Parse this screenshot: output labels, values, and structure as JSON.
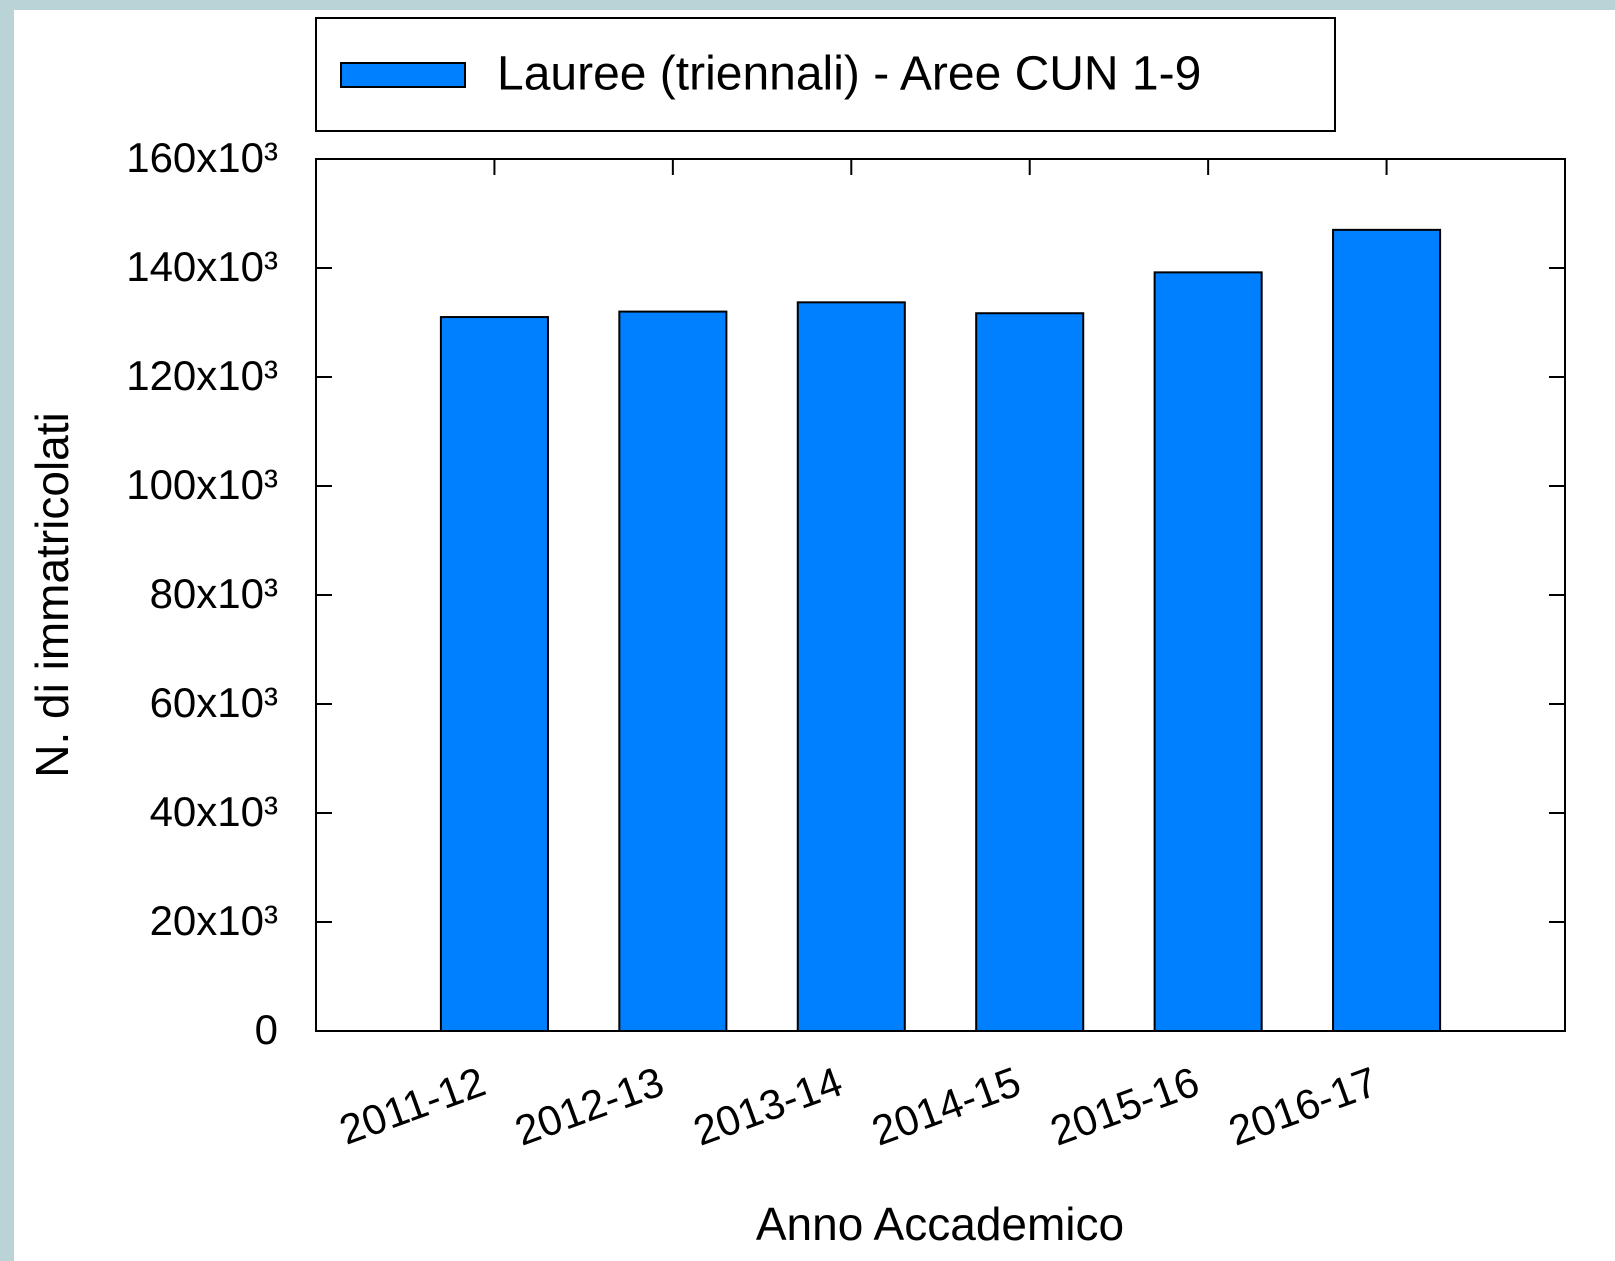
{
  "chart_data": {
    "type": "bar",
    "xlabel": "Anno Accademico",
    "ylabel": "N. di immatricolati",
    "categories": [
      "2011-12",
      "2012-13",
      "2013-14",
      "2014-15",
      "2015-16",
      "2016-17"
    ],
    "series": [
      {
        "name": "Lauree (triennali) - Aree CUN 1-9",
        "color": "#0080ff",
        "values": [
          131000,
          132000,
          133700,
          131700,
          139200,
          147000
        ]
      }
    ],
    "ylim": [
      0,
      160000
    ],
    "yticks": [
      0,
      {
        "value": 20000,
        "label": "20x10³"
      },
      {
        "value": 40000,
        "label": "40x10³"
      },
      {
        "value": 60000,
        "label": "60x10³"
      },
      {
        "value": 80000,
        "label": "80x10³"
      },
      {
        "value": 100000,
        "label": "100x10³"
      },
      {
        "value": 120000,
        "label": "120x10³"
      },
      {
        "value": 140000,
        "label": "140x10³"
      },
      {
        "value": 160000,
        "label": "160x10³"
      }
    ],
    "legend": "top"
  }
}
